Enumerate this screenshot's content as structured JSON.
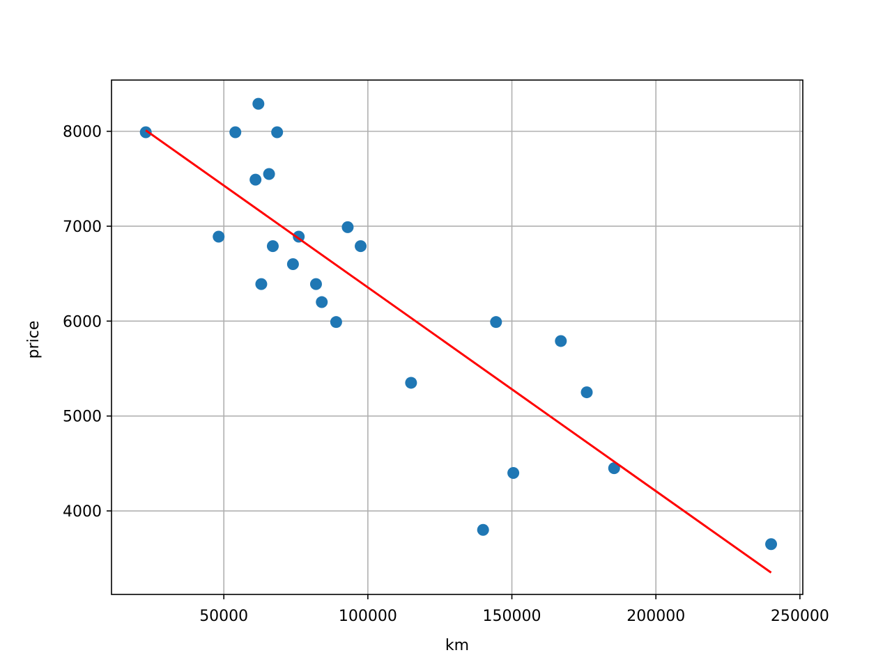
{
  "chart_data": {
    "type": "scatter",
    "xlabel": "km",
    "ylabel": "price",
    "xlim": [
      11000,
      251000
    ],
    "ylim": [
      3120,
      8540
    ],
    "grid": true,
    "xticks": [
      50000,
      100000,
      150000,
      200000,
      250000
    ],
    "xtick_labels": [
      "50000",
      "100000",
      "150000",
      "200000",
      "250000"
    ],
    "yticks": [
      4000,
      5000,
      6000,
      7000,
      8000
    ],
    "ytick_labels": [
      "4000",
      "5000",
      "6000",
      "7000",
      "8000"
    ],
    "series": [
      {
        "type": "scatter",
        "color": "#1f77b4",
        "points": [
          {
            "x": 22900,
            "y": 7990
          },
          {
            "x": 48200,
            "y": 6890
          },
          {
            "x": 54000,
            "y": 7990
          },
          {
            "x": 61000,
            "y": 7490
          },
          {
            "x": 62000,
            "y": 8290
          },
          {
            "x": 63000,
            "y": 6390
          },
          {
            "x": 65700,
            "y": 7550
          },
          {
            "x": 67000,
            "y": 6790
          },
          {
            "x": 68500,
            "y": 7990
          },
          {
            "x": 74000,
            "y": 6600
          },
          {
            "x": 76000,
            "y": 6890
          },
          {
            "x": 82000,
            "y": 6390
          },
          {
            "x": 84000,
            "y": 6200
          },
          {
            "x": 89000,
            "y": 5990
          },
          {
            "x": 93000,
            "y": 6990
          },
          {
            "x": 97500,
            "y": 6790
          },
          {
            "x": 115000,
            "y": 5350
          },
          {
            "x": 140000,
            "y": 3800
          },
          {
            "x": 144500,
            "y": 5990
          },
          {
            "x": 150500,
            "y": 4400
          },
          {
            "x": 167000,
            "y": 5790
          },
          {
            "x": 176000,
            "y": 5250
          },
          {
            "x": 185500,
            "y": 4450
          },
          {
            "x": 240000,
            "y": 3650
          }
        ]
      },
      {
        "type": "line",
        "color": "#ff0000",
        "points": [
          {
            "x": 22900,
            "y": 8010
          },
          {
            "x": 240000,
            "y": 3350
          }
        ]
      }
    ]
  }
}
